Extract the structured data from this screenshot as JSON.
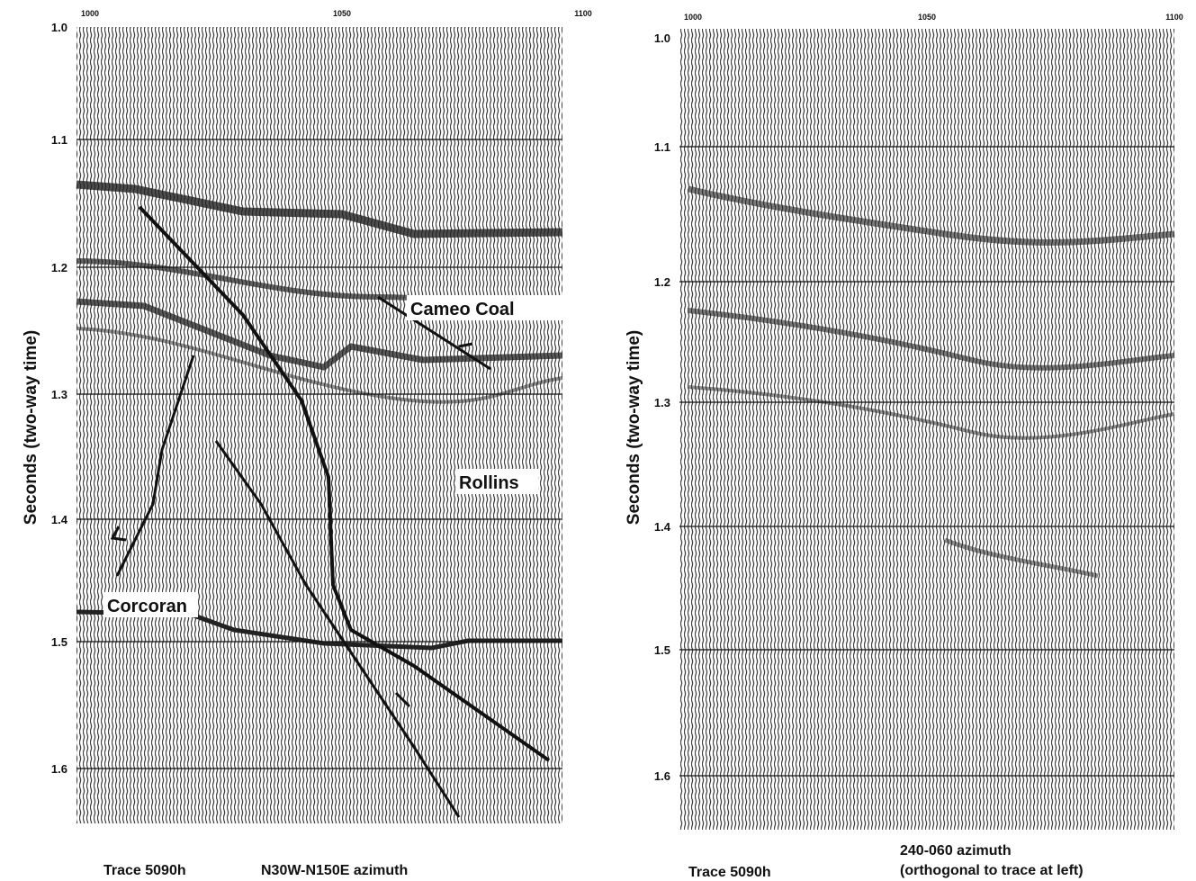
{
  "panels": [
    {
      "x_ticks": [
        "1000",
        "1050",
        "1100"
      ],
      "y_ticks": [
        "1.0",
        "1.1",
        "1.2",
        "1.3",
        "1.4",
        "1.5",
        "1.6"
      ],
      "y_label": "Seconds (two-way time)",
      "annotations": [
        "Cameo Coal",
        "Rollins",
        "Corcoran"
      ],
      "captions": [
        "Trace 5090h",
        "N30W-N150E azimuth"
      ]
    },
    {
      "x_ticks": [
        "1000",
        "1050",
        "1100"
      ],
      "y_ticks": [
        "1.0",
        "1.1",
        "1.2",
        "1.3",
        "1.4",
        "1.5",
        "1.6"
      ],
      "y_label": "Seconds (two-way time)",
      "captions": [
        "Trace 5090h",
        "240-060 azimuth",
        "(orthogonal to trace at left)"
      ]
    }
  ]
}
